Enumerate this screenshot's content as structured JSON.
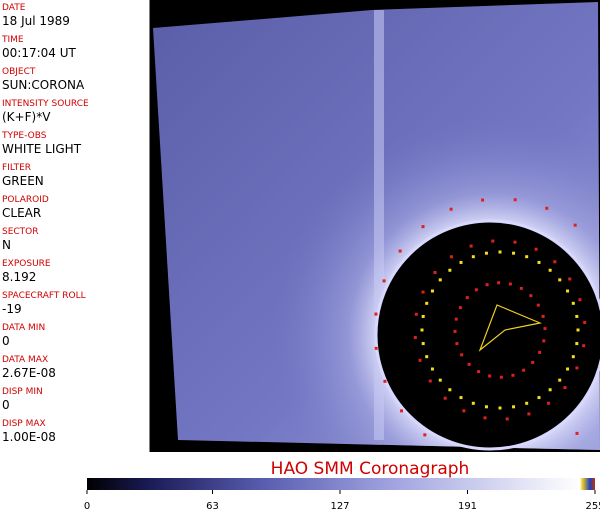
{
  "fields": [
    {
      "label": "DATE",
      "value": "18 Jul 1989"
    },
    {
      "label": "TIME",
      "value": "00:17:04 UT"
    },
    {
      "label": "OBJECT",
      "value": "SUN:CORONA"
    },
    {
      "label": "INTENSITY SOURCE",
      "value": "(K+F)*V"
    },
    {
      "label": "TYPE-OBS",
      "value": "WHITE LIGHT"
    },
    {
      "label": "FILTER",
      "value": "GREEN"
    },
    {
      "label": "POLAROID",
      "value": "CLEAR"
    },
    {
      "label": "SECTOR",
      "value": "N"
    },
    {
      "label": "EXPOSURE",
      "value": "8.192"
    },
    {
      "label": "SPACECRAFT ROLL",
      "value": "-19"
    },
    {
      "label": "DATA MIN",
      "value": "0"
    },
    {
      "label": "DATA MAX",
      "value": "2.67E-08"
    },
    {
      "label": "DISP MIN",
      "value": "0"
    },
    {
      "label": "DISP MAX",
      "value": "1.00E-08"
    }
  ],
  "title": "HAO SMM Coronagraph",
  "colorbar": {
    "lim": [
      0,
      255
    ],
    "ticks": [
      0,
      63,
      127,
      191,
      255
    ]
  }
}
